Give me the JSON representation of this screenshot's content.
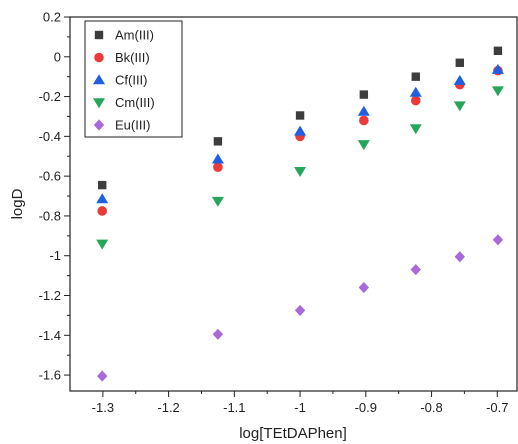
{
  "chart_data": {
    "type": "scatter",
    "title": "",
    "xlabel": "log[TEtDAPhen]",
    "ylabel": "logD",
    "xlim": [
      -1.35,
      -0.67
    ],
    "ylim": [
      -1.68,
      0.2
    ],
    "xticks": [
      -1.3,
      -1.2,
      -1.1,
      -1,
      -0.9,
      -0.8,
      -0.7
    ],
    "xtick_labels": [
      "-1.3",
      "-1.2",
      "-1.1",
      "-1",
      "-0.9",
      "-0.8",
      "-0.7"
    ],
    "yticks": [
      0.2,
      0,
      -0.2,
      -0.4,
      -0.6,
      -0.8,
      -1,
      -1.2,
      -1.4,
      -1.6
    ],
    "ytick_labels": [
      "0.2",
      "0",
      "-0.2",
      "-0.4",
      "-0.6",
      "-0.8",
      "-1",
      "-1.2",
      "-1.4",
      "-1.6"
    ],
    "grid": false,
    "legend_position": "top-left",
    "x": [
      -1.301,
      -1.125,
      -1.0,
      -0.903,
      -0.824,
      -0.757,
      -0.699
    ],
    "series": [
      {
        "name": "Am(III)",
        "marker": "square",
        "color": "#3d3d3d",
        "values": [
          -0.645,
          -0.425,
          -0.295,
          -0.19,
          -0.1,
          -0.03,
          0.03
        ]
      },
      {
        "name": "Bk(III)",
        "marker": "circle",
        "color": "#ea3a3a",
        "values": [
          -0.775,
          -0.555,
          -0.4,
          -0.32,
          -0.22,
          -0.14,
          -0.07
        ]
      },
      {
        "name": "Cf(III)",
        "marker": "triangle-up",
        "color": "#1f5fe0",
        "values": [
          -0.715,
          -0.515,
          -0.375,
          -0.275,
          -0.18,
          -0.12,
          -0.065
        ]
      },
      {
        "name": "Cm(III)",
        "marker": "triangle-down",
        "color": "#26a65b",
        "values": [
          -0.94,
          -0.725,
          -0.575,
          -0.44,
          -0.36,
          -0.245,
          -0.17
        ]
      },
      {
        "name": "Eu(III)",
        "marker": "diamond",
        "color": "#a86ad8",
        "values": [
          -1.605,
          -1.395,
          -1.275,
          -1.16,
          -1.07,
          -1.005,
          -0.92
        ]
      }
    ]
  }
}
